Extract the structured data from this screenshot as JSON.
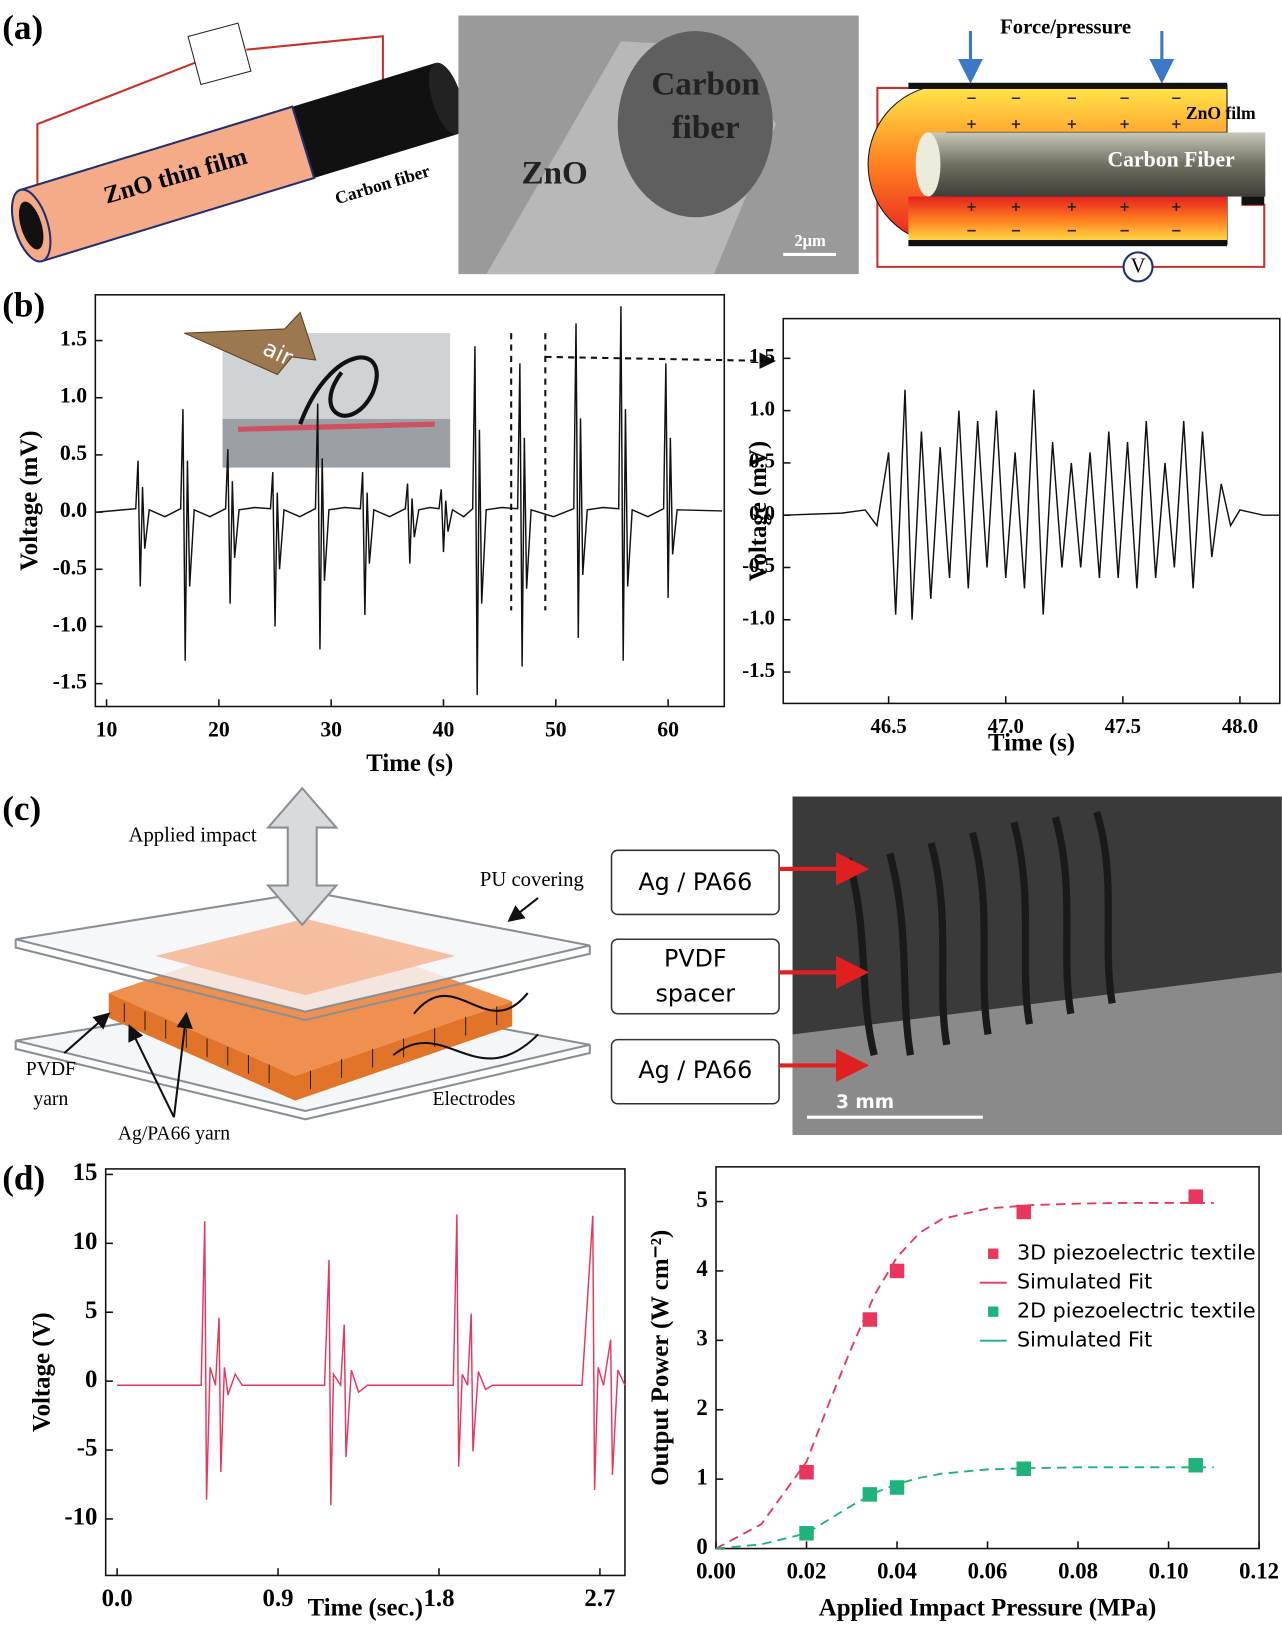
{
  "panel_labels": [
    "(a)",
    "(b)",
    "(c)",
    "(d)"
  ],
  "panel_a": {
    "tube_label": "ZnO thin film",
    "core_label": "Carbon fiber",
    "sem_zno": "ZnO",
    "sem_carbon": [
      "Carbon",
      "fiber"
    ],
    "scale_bar": "2μm",
    "force": "Force/pressure",
    "film": "ZnO film",
    "fiber": "Carbon Fiber",
    "meter": "V"
  },
  "panel_b": {
    "inset_label": "air"
  },
  "panel_c": {
    "impact": "Applied impact",
    "covering": "PU covering",
    "pvdf_yarn": [
      "PVDF",
      "yarn"
    ],
    "ag_yarn": "Ag/PA66 yarn",
    "electrodes": "Electrodes",
    "boxes": [
      [
        "Ag / PA66"
      ],
      [
        "PVDF",
        "spacer"
      ],
      [
        "Ag / PA66"
      ]
    ],
    "scale_bar": "3 mm"
  },
  "chart_data": [
    {
      "type": "line",
      "xlabel": "Time (s)",
      "ylabel": "Voltage (mV)",
      "xlim": [
        9,
        65
      ],
      "ylim": [
        -1.7,
        1.9
      ],
      "xticks": [
        10,
        20,
        30,
        40,
        50,
        60
      ],
      "yticks": [
        -1.5,
        {
          "value": -1,
          "label": "-1.0"
        },
        -0.5,
        {
          "value": 0,
          "label": "0.0"
        },
        0.5,
        {
          "value": 1,
          "label": "1.0"
        },
        1.5
      ],
      "x": [
        9.2,
        12.6,
        12.8,
        13,
        13.2,
        13.4,
        13.8,
        15.2,
        16.6,
        16.8,
        17,
        17.2,
        17.4,
        17.8,
        19.2,
        20.6,
        20.8,
        21,
        21.2,
        21.4,
        21.8,
        23.2,
        24.6,
        24.8,
        25,
        25.2,
        25.4,
        25.8,
        27.2,
        28.6,
        28.8,
        29,
        29.2,
        29.4,
        29.8,
        31.2,
        32.6,
        32.8,
        33,
        33.2,
        33.4,
        33.8,
        35.2,
        36.6,
        36.8,
        37,
        37.2,
        37.4,
        37.8,
        38.8,
        39.6,
        39.8,
        40,
        40.2,
        40.4,
        40.8,
        41.8,
        42.6,
        42.8,
        43,
        43.2,
        43.4,
        43.8,
        45.2,
        46.6,
        46.8,
        47,
        47.2,
        47.4,
        47.8,
        49.8,
        51.6,
        51.8,
        52,
        52.2,
        52.4,
        52.8,
        54.2,
        55.6,
        55.8,
        56,
        56.2,
        56.4,
        56.8,
        58.2,
        59.6,
        59.8,
        60,
        60.2,
        60.4,
        60.8,
        64.8
      ],
      "series": [
        {
          "color": "#111111",
          "values": [
            0,
            0.03,
            0.45,
            -0.65,
            0.22,
            -0.32,
            0.02,
            -0.04,
            0.03,
            0.9,
            -1.3,
            0.45,
            -0.65,
            0.02,
            -0.04,
            0.03,
            0.55,
            -0.8,
            0.27,
            -0.4,
            0.02,
            0.04,
            0.03,
            0.35,
            -1.0,
            0.17,
            -0.5,
            0.02,
            -0.04,
            0.03,
            0.95,
            -1.2,
            0.47,
            -0.6,
            0.02,
            0.04,
            0.03,
            0.35,
            -0.9,
            0.17,
            -0.45,
            0.02,
            -0.04,
            0.03,
            0.25,
            -0.45,
            0.12,
            -0.22,
            0.02,
            0.04,
            0.03,
            0.2,
            -0.35,
            0.1,
            -0.17,
            0.02,
            -0.04,
            0.03,
            1.45,
            -1.6,
            0.72,
            -0.8,
            0.02,
            0.04,
            0.03,
            1.3,
            -1.35,
            0.65,
            -0.67,
            0.02,
            -0.04,
            0.03,
            1.65,
            -1.1,
            0.82,
            -0.55,
            0.02,
            0.04,
            0.03,
            1.8,
            -1.3,
            0.9,
            -0.65,
            0.02,
            -0.04,
            0.03,
            1.3,
            -0.75,
            0.65,
            -0.37,
            0.02,
            0.01
          ]
        }
      ]
    },
    {
      "type": "line",
      "xlabel": "Time (s)",
      "ylabel": "Voltage (mV)",
      "xlim": [
        46.05,
        48.17
      ],
      "ylim": [
        -1.8,
        1.88
      ],
      "xticks": [
        46.5,
        {
          "value": 47,
          "label": "47.0"
        },
        47.5,
        {
          "value": 48,
          "label": "48.0"
        }
      ],
      "yticks": [
        -1.5,
        {
          "value": -1,
          "label": "-1.0"
        },
        -0.5,
        {
          "value": 0,
          "label": "0.0"
        },
        0.5,
        {
          "value": 1,
          "label": "1.0"
        },
        1.5
      ],
      "x": [
        46.05,
        46.3,
        46.4,
        46.45,
        46.5,
        46.53,
        46.57,
        46.6,
        46.64,
        46.68,
        46.72,
        46.76,
        46.8,
        46.84,
        46.88,
        46.92,
        46.96,
        47.0,
        47.04,
        47.08,
        47.12,
        47.16,
        47.2,
        47.24,
        47.28,
        47.32,
        47.36,
        47.4,
        47.44,
        47.48,
        47.52,
        47.56,
        47.6,
        47.64,
        47.68,
        47.72,
        47.76,
        47.8,
        47.84,
        47.88,
        47.92,
        47.96,
        48.0,
        48.1,
        48.17
      ],
      "series": [
        {
          "color": "#111111",
          "values": [
            0,
            0.02,
            0.05,
            -0.1,
            0.6,
            -0.95,
            1.2,
            -1.0,
            0.8,
            -0.8,
            0.65,
            -0.6,
            1.0,
            -0.7,
            0.9,
            -0.5,
            1.0,
            -0.6,
            0.6,
            -0.7,
            1.2,
            -0.95,
            0.7,
            -0.5,
            0.5,
            -0.5,
            0.6,
            -0.6,
            0.8,
            -0.6,
            0.7,
            -0.7,
            0.9,
            -0.6,
            0.5,
            -0.5,
            0.9,
            -0.7,
            0.8,
            -0.4,
            0.3,
            -0.1,
            0.05,
            0,
            0
          ]
        }
      ]
    },
    {
      "type": "line",
      "xlabel": "Time (sec.)",
      "ylabel": "Voltage (V)",
      "xlim": [
        -0.064,
        2.84
      ],
      "ylim": [
        -14.1,
        15.4
      ],
      "xticks": [
        {
          "value": 0,
          "label": "0.0"
        },
        0.9,
        1.8,
        2.7
      ],
      "yticks": [
        -10,
        -5,
        0,
        5,
        10,
        15
      ],
      "x": [
        0,
        0.47,
        0.49,
        0.5,
        0.52,
        0.55,
        0.57,
        0.58,
        0.6,
        0.62,
        0.66,
        0.7,
        1.16,
        1.185,
        1.195,
        1.21,
        1.25,
        1.27,
        1.28,
        1.31,
        1.35,
        1.4,
        1.88,
        1.9,
        1.91,
        1.93,
        1.96,
        1.98,
        1.99,
        2.02,
        2.06,
        2.1,
        2.6,
        2.66,
        2.67,
        2.69,
        2.72,
        2.76,
        2.77,
        2.8,
        2.84
      ],
      "series": [
        {
          "color": "#e8365d",
          "values": [
            -0.3,
            -0.3,
            11.6,
            -8.6,
            1,
            -0.3,
            4.6,
            -6.6,
            1,
            -1,
            0.5,
            -0.3,
            -0.3,
            8.8,
            -9.0,
            0.5,
            -0.3,
            4.1,
            -5.5,
            0.8,
            -0.8,
            -0.3,
            -0.3,
            12.1,
            -6.2,
            0.5,
            -0.3,
            4.9,
            -5.1,
            0.7,
            -0.6,
            -0.3,
            -0.3,
            12,
            -7.9,
            1,
            -0.3,
            3,
            -6.8,
            0.8,
            -0.3
          ]
        }
      ]
    },
    {
      "type": "scatter",
      "xlabel": "Applied Impact Pressure (MPa)",
      "ylabel": "Output Power (W cm⁻²)",
      "xlim": [
        0,
        0.12
      ],
      "ylim": [
        0,
        5.5
      ],
      "xticks": [
        {
          "value": 0,
          "label": "0.00"
        },
        {
          "value": 0.02,
          "label": "0.02"
        },
        {
          "value": 0.04,
          "label": "0.04"
        },
        {
          "value": 0.06,
          "label": "0.06"
        },
        {
          "value": 0.08,
          "label": "0.08"
        },
        {
          "value": 0.1,
          "label": "0.10"
        },
        {
          "value": 0.12,
          "label": "0.12"
        }
      ],
      "yticks": [
        0,
        1,
        2,
        3,
        4,
        5
      ],
      "legend": "upper right",
      "series": [
        {
          "name": "3D piezoelectric textile",
          "color": "#e8365d",
          "marker": "square",
          "x": [
            0.02,
            0.034,
            0.04,
            0.068,
            0.106
          ],
          "values": [
            1.1,
            3.3,
            4.0,
            4.85,
            5.07
          ]
        },
        {
          "name": "Simulated Fit",
          "color": "#e8365d",
          "dash": true,
          "x": [
            0,
            0.01,
            0.02,
            0.025,
            0.03,
            0.035,
            0.04,
            0.045,
            0.05,
            0.06,
            0.07,
            0.08,
            0.09,
            0.1,
            0.11
          ],
          "values": [
            0,
            0.35,
            1.25,
            2.1,
            2.9,
            3.65,
            4.2,
            4.55,
            4.75,
            4.9,
            4.95,
            4.97,
            4.98,
            4.98,
            4.98
          ]
        },
        {
          "name": "2D piezoelectric textile",
          "color": "#1fb27a",
          "marker": "square",
          "x": [
            0.02,
            0.034,
            0.04,
            0.068,
            0.106
          ],
          "values": [
            0.22,
            0.78,
            0.88,
            1.15,
            1.2
          ]
        },
        {
          "name": "Simulated Fit",
          "color": "#1fb27a",
          "dash": true,
          "x": [
            0,
            0.01,
            0.02,
            0.025,
            0.03,
            0.035,
            0.04,
            0.045,
            0.05,
            0.06,
            0.07,
            0.08,
            0.09,
            0.1,
            0.11
          ],
          "values": [
            0,
            0.06,
            0.22,
            0.42,
            0.62,
            0.8,
            0.93,
            1.02,
            1.08,
            1.14,
            1.16,
            1.17,
            1.17,
            1.17,
            1.17
          ]
        }
      ]
    }
  ]
}
